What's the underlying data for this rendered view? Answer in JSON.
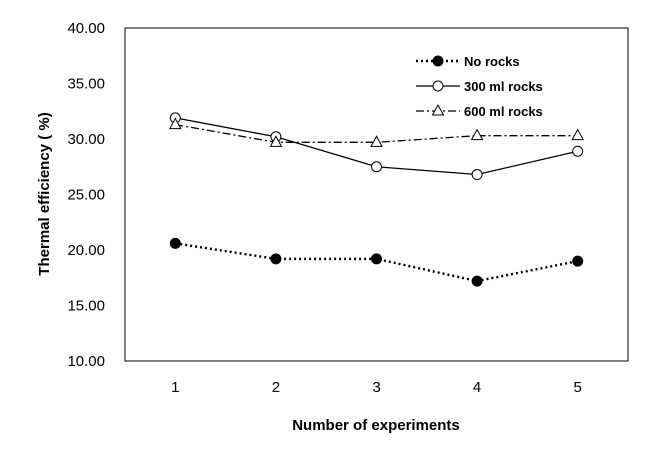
{
  "chart_data": {
    "type": "line",
    "xlabel": "Number of experiments",
    "ylabel": "Thermal efficiency ( %)",
    "x": [
      1,
      2,
      3,
      4,
      5
    ],
    "xlim": [
      0.5,
      5.5
    ],
    "ylim": [
      10,
      40
    ],
    "y_ticks": [
      "10.00",
      "15.00",
      "20.00",
      "25.00",
      "30.00",
      "35.00",
      "40.00"
    ],
    "x_ticks": [
      "1",
      "2",
      "3",
      "4",
      "5"
    ],
    "grid": false,
    "legend_position": "top-right",
    "series": [
      {
        "name": "No rocks",
        "values": [
          20.6,
          19.2,
          19.2,
          17.2,
          19.0
        ],
        "line_style": "dotted",
        "marker": "filled-circle"
      },
      {
        "name": "300 ml rocks",
        "values": [
          31.9,
          30.2,
          27.5,
          26.8,
          28.9
        ],
        "line_style": "solid",
        "marker": "open-circle"
      },
      {
        "name": "600 ml rocks",
        "values": [
          31.3,
          29.7,
          29.7,
          30.3,
          30.3
        ],
        "line_style": "dash-dot",
        "marker": "open-triangle"
      }
    ],
    "colors": {
      "line": "#000000",
      "background": "#ffffff"
    }
  }
}
